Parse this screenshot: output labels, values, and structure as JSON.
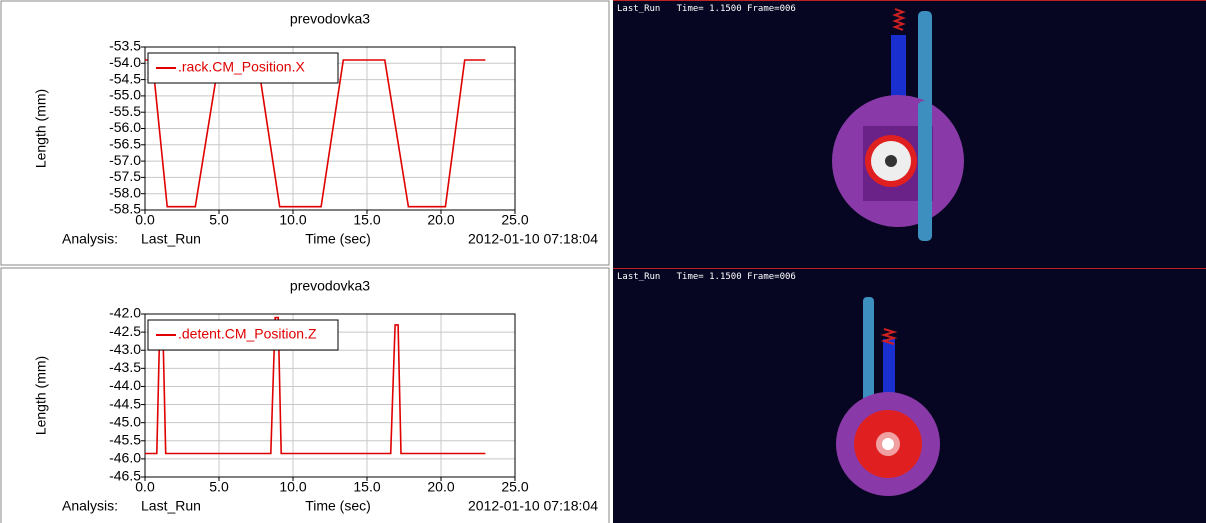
{
  "chart_data": [
    {
      "type": "line",
      "title": "prevodovka3",
      "y_label": "Length (mm)",
      "x_label": "Time (sec)",
      "analysis_label": "Analysis:",
      "analysis": "Last_Run",
      "timestamp": "2012-01-10 07:18:04",
      "grid": true,
      "legend": "upper left",
      "x": [
        0,
        0.5,
        1.5,
        3.4,
        5.0,
        7.6,
        9.1,
        11.9,
        13.4,
        16.2,
        17.8,
        20.3,
        21.6,
        23.0
      ],
      "series": [
        {
          "name": ".rack.CM_Position.X",
          "color": "#e00000",
          "values": [
            -53.9,
            -53.9,
            -58.4,
            -58.4,
            -53.9,
            -53.9,
            -58.4,
            -58.4,
            -53.9,
            -53.9,
            -58.4,
            -58.4,
            -53.9,
            -53.9
          ]
        }
      ],
      "xlim": [
        0,
        25
      ],
      "xticks": [
        {
          "value": 0,
          "label": "0.0"
        },
        {
          "value": 5,
          "label": "5.0"
        },
        {
          "value": 10,
          "label": "10.0"
        },
        {
          "value": 15,
          "label": "15.0"
        },
        {
          "value": 20,
          "label": "20.0"
        },
        {
          "value": 25,
          "label": "25.0"
        }
      ],
      "ylim": [
        -58.5,
        -53.5
      ],
      "yticks": [
        -53.5,
        {
          "value": -54,
          "label": "-54.0"
        },
        -54.5,
        {
          "value": -55,
          "label": "-55.0"
        },
        -55.5,
        {
          "value": -56,
          "label": "-56.0"
        },
        -56.5,
        {
          "value": -57,
          "label": "-57.0"
        },
        -57.5,
        {
          "value": -58,
          "label": "-58.0"
        },
        -58.5
      ]
    },
    {
      "type": "line",
      "title": "prevodovka3",
      "y_label": "Length (mm)",
      "x_label": "Time (sec)",
      "analysis_label": "Analysis:",
      "analysis": "Last_Run",
      "timestamp": "2012-01-10 07:18:04",
      "grid": true,
      "legend": "upper left",
      "x": [
        0,
        0.8,
        1.0,
        1.2,
        1.4,
        8.5,
        8.8,
        9.0,
        9.2,
        16.6,
        16.9,
        17.1,
        17.3,
        23.0
      ],
      "series": [
        {
          "name": ".detent.CM_Position.Z",
          "color": "#e00000",
          "values": [
            -45.85,
            -45.85,
            -42.3,
            -42.3,
            -45.85,
            -45.85,
            -42.1,
            -42.1,
            -45.85,
            -45.85,
            -42.3,
            -42.3,
            -45.85,
            -45.85
          ]
        }
      ],
      "xlim": [
        0,
        25
      ],
      "xticks": [
        {
          "value": 0,
          "label": "0.0"
        },
        {
          "value": 5,
          "label": "5.0"
        },
        {
          "value": 10,
          "label": "10.0"
        },
        {
          "value": 15,
          "label": "15.0"
        },
        {
          "value": 20,
          "label": "20.0"
        },
        {
          "value": 25,
          "label": "25.0"
        }
      ],
      "ylim": [
        -46.5,
        -42
      ],
      "yticks": [
        {
          "value": -42,
          "label": "-42.0"
        },
        -42.5,
        {
          "value": -43,
          "label": "-43.0"
        },
        -43.5,
        {
          "value": -44,
          "label": "-44.0"
        },
        -44.5,
        {
          "value": -45,
          "label": "-45.0"
        },
        -45.5,
        {
          "value": -46,
          "label": "-46.0"
        },
        -46.5
      ]
    }
  ],
  "viewports": [
    {
      "analysis": "Last_Run",
      "time": "Time= 1.1500",
      "frame": "Frame=006"
    },
    {
      "analysis": "Last_Run",
      "time": "Time= 1.1500",
      "frame": "Frame=006"
    }
  ]
}
